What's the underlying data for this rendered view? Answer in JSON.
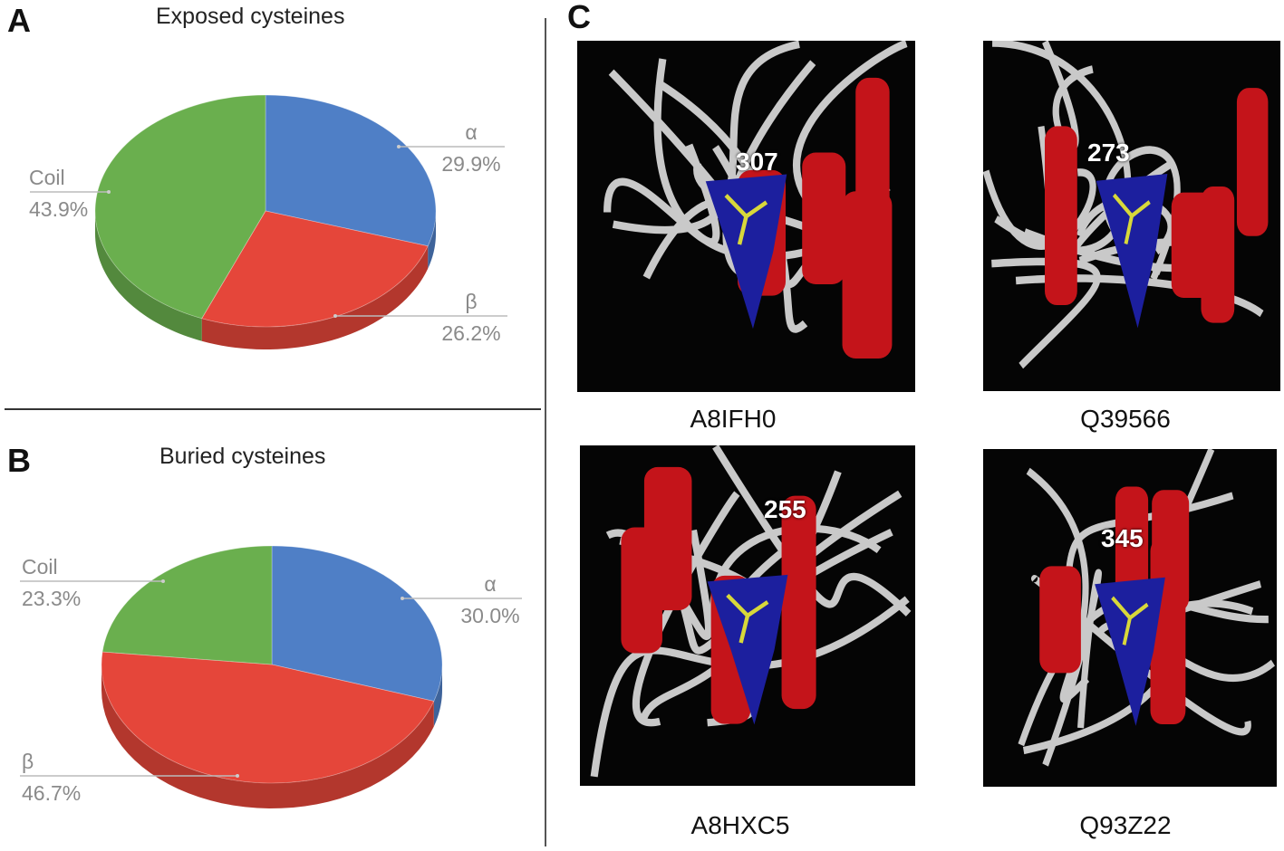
{
  "panels": {
    "a": "A",
    "b": "B",
    "c": "C"
  },
  "chart_data": [
    {
      "type": "pie",
      "style": "3d",
      "title": "Exposed cysteines",
      "categories": [
        "α",
        "β",
        "Coil"
      ],
      "values": [
        29.9,
        26.2,
        43.9
      ],
      "labels": [
        "29.9%",
        "26.2%",
        "43.9%"
      ],
      "colors": [
        "#4f7fc6",
        "#e5463a",
        "#6aaf4e"
      ]
    },
    {
      "type": "pie",
      "style": "3d",
      "title": "Buried cysteines",
      "categories": [
        "α",
        "β",
        "Coil"
      ],
      "values": [
        30.0,
        46.7,
        23.3
      ],
      "labels": [
        "30.0%",
        "46.7%",
        "23.3%"
      ],
      "colors": [
        "#4f7fc6",
        "#e5463a",
        "#6aaf4e"
      ]
    }
  ],
  "structures": [
    {
      "id": "A8IFH0",
      "residue": "307"
    },
    {
      "id": "Q39566",
      "residue": "273"
    },
    {
      "id": "A8HXC5",
      "residue": "255"
    },
    {
      "id": "Q93Z22",
      "residue": "345"
    }
  ]
}
